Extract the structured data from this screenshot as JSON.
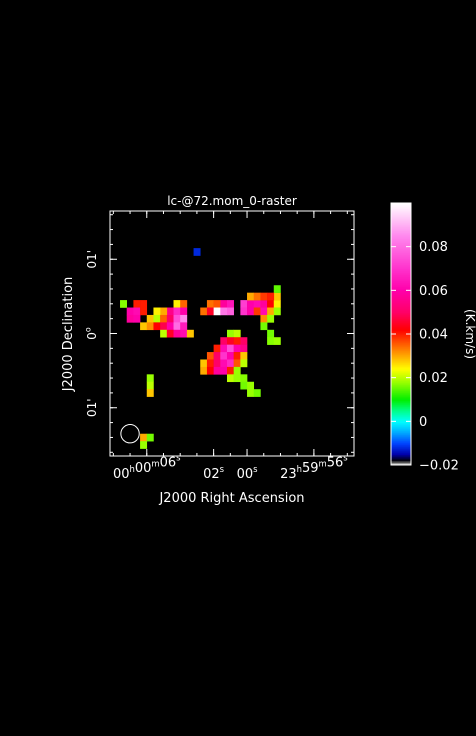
{
  "chart_data": {
    "type": "heatmap",
    "title": "lc-@72.mom_0-raster",
    "xlabel": "J2000 Right Ascension",
    "ylabel": "J2000 Declination",
    "x_ticks": [
      {
        "value": 6,
        "label_html": "00<sup>h</sup>00<sup>m</sup>06<sup>s</sup>",
        "parts": [
          [
            "00",
            ""
          ],
          [
            "h",
            "sup"
          ],
          [
            "00",
            ""
          ],
          [
            "m",
            "sup"
          ],
          [
            "06",
            ""
          ],
          [
            "s",
            "sup"
          ]
        ]
      },
      {
        "value": 2,
        "parts": [
          [
            "02",
            ""
          ],
          [
            "s",
            "sup"
          ]
        ]
      },
      {
        "value": 0,
        "parts": [
          [
            "00",
            ""
          ],
          [
            "s",
            "sup"
          ]
        ]
      },
      {
        "value": -4,
        "parts": [
          [
            "23",
            ""
          ],
          [
            "h",
            "sup"
          ],
          [
            "59",
            ""
          ],
          [
            "m",
            "sup"
          ],
          [
            "56",
            ""
          ],
          [
            "s",
            "sup"
          ]
        ]
      }
    ],
    "y_ticks": [
      {
        "value": 1,
        "parts": [
          [
            "01",
            ""
          ],
          [
            "'",
            ""
          ]
        ]
      },
      {
        "value": 0,
        "parts": [
          [
            "0",
            ""
          ],
          [
            "o",
            "sup"
          ]
        ]
      },
      {
        "value": -1,
        "parts": [
          [
            "01",
            ""
          ],
          [
            "'",
            ""
          ]
        ]
      }
    ],
    "xlim": [
      8.2,
      -6.4
    ],
    "ylim": [
      -1.65,
      1.65
    ],
    "colorbar": {
      "label": "(K.km/s)",
      "range": [
        -0.02,
        0.1
      ],
      "ticks": [
        {
          "value": 0.08,
          "label": "0.08"
        },
        {
          "value": 0.06,
          "label": "0.06"
        },
        {
          "value": 0.04,
          "label": "0.04"
        },
        {
          "value": 0.02,
          "label": "0.02"
        },
        {
          "value": 0,
          "label": "0"
        },
        {
          "value": -0.02,
          "label": "−0.02"
        }
      ],
      "stops": [
        [
          -0.02,
          "#ffffff"
        ],
        [
          -0.018,
          "#000000"
        ],
        [
          -0.015,
          "#0000aa"
        ],
        [
          -0.01,
          "#0044ff"
        ],
        [
          -0.005,
          "#00aaff"
        ],
        [
          0.0,
          "#00ffff"
        ],
        [
          0.005,
          "#00ff88"
        ],
        [
          0.01,
          "#00ee00"
        ],
        [
          0.018,
          "#99ff00"
        ],
        [
          0.024,
          "#ffff00"
        ],
        [
          0.03,
          "#ffaa00"
        ],
        [
          0.036,
          "#ff5500"
        ],
        [
          0.042,
          "#ff0000"
        ],
        [
          0.05,
          "#ff0066"
        ],
        [
          0.06,
          "#ff00aa"
        ],
        [
          0.07,
          "#ff33cc"
        ],
        [
          0.085,
          "#ff88ee"
        ],
        [
          0.1,
          "#ffffff"
        ]
      ]
    },
    "pixel_grid": {
      "x0": 7.4,
      "dx": -0.4,
      "y0": 1.1,
      "dy": -0.1
    },
    "cells": [
      [
        11,
        0,
        -0.012
      ],
      [
        0,
        7,
        0.017
      ],
      [
        2,
        7,
        0.04
      ],
      [
        3,
        7,
        0.04
      ],
      [
        1,
        8,
        0.06
      ],
      [
        2,
        8,
        0.062
      ],
      [
        3,
        8,
        0.04
      ],
      [
        1,
        9,
        0.058
      ],
      [
        2,
        9,
        0.06
      ],
      [
        13,
        7,
        0.034
      ],
      [
        14,
        7,
        0.036
      ],
      [
        15,
        7,
        0.058
      ],
      [
        16,
        7,
        0.064
      ],
      [
        18,
        7,
        0.072
      ],
      [
        19,
        7,
        0.06
      ],
      [
        20,
        7,
        0.062
      ],
      [
        21,
        7,
        0.058
      ],
      [
        22,
        7,
        0.042
      ],
      [
        23,
        7,
        0.025
      ],
      [
        12,
        8,
        0.034
      ],
      [
        13,
        8,
        0.045
      ],
      [
        14,
        8,
        0.1
      ],
      [
        15,
        8,
        0.082
      ],
      [
        16,
        8,
        0.078
      ],
      [
        18,
        8,
        0.07
      ],
      [
        19,
        8,
        0.06
      ],
      [
        20,
        8,
        0.038
      ],
      [
        21,
        8,
        0.062
      ],
      [
        22,
        8,
        0.03
      ],
      [
        23,
        8,
        0.018
      ],
      [
        23,
        6,
        0.028
      ],
      [
        23,
        5,
        0.015
      ],
      [
        19,
        6,
        0.03
      ],
      [
        20,
        6,
        0.034
      ],
      [
        21,
        6,
        0.038
      ],
      [
        22,
        6,
        0.04
      ],
      [
        21,
        9,
        0.032
      ],
      [
        22,
        9,
        0.018
      ],
      [
        21,
        10,
        0.016
      ],
      [
        8,
        7,
        0.025
      ],
      [
        9,
        7,
        0.035
      ],
      [
        7,
        8,
        0.055
      ],
      [
        8,
        8,
        0.068
      ],
      [
        9,
        8,
        0.06
      ],
      [
        6,
        8,
        0.03
      ],
      [
        5,
        8,
        0.025
      ],
      [
        4,
        9,
        0.028
      ],
      [
        5,
        9,
        0.02
      ],
      [
        6,
        9,
        0.035
      ],
      [
        7,
        9,
        0.05
      ],
      [
        8,
        9,
        0.075
      ],
      [
        9,
        9,
        0.085
      ],
      [
        3,
        10,
        0.028
      ],
      [
        4,
        10,
        0.032
      ],
      [
        5,
        10,
        0.042
      ],
      [
        6,
        10,
        0.048
      ],
      [
        7,
        10,
        0.06
      ],
      [
        8,
        10,
        0.08
      ],
      [
        9,
        10,
        0.065
      ],
      [
        6,
        11,
        0.02
      ],
      [
        7,
        11,
        0.045
      ],
      [
        8,
        11,
        0.058
      ],
      [
        9,
        11,
        0.062
      ],
      [
        10,
        11,
        0.028
      ],
      [
        16,
        11,
        0.018
      ],
      [
        17,
        11,
        0.02
      ],
      [
        22,
        11,
        0.016
      ],
      [
        22,
        12,
        0.017
      ],
      [
        23,
        12,
        0.018
      ],
      [
        15,
        12,
        0.05
      ],
      [
        16,
        12,
        0.045
      ],
      [
        17,
        12,
        0.04
      ],
      [
        18,
        12,
        0.05
      ],
      [
        14,
        13,
        0.04
      ],
      [
        15,
        13,
        0.062
      ],
      [
        16,
        13,
        0.075
      ],
      [
        17,
        13,
        0.06
      ],
      [
        18,
        13,
        0.055
      ],
      [
        13,
        14,
        0.036
      ],
      [
        14,
        14,
        0.05
      ],
      [
        15,
        14,
        0.07
      ],
      [
        16,
        14,
        0.06
      ],
      [
        17,
        14,
        0.04
      ],
      [
        18,
        14,
        0.028
      ],
      [
        12,
        15,
        0.028
      ],
      [
        13,
        15,
        0.04
      ],
      [
        14,
        15,
        0.05
      ],
      [
        15,
        15,
        0.062
      ],
      [
        16,
        15,
        0.068
      ],
      [
        17,
        15,
        0.036
      ],
      [
        18,
        15,
        0.02
      ],
      [
        12,
        16,
        0.03
      ],
      [
        13,
        16,
        0.042
      ],
      [
        14,
        16,
        0.058
      ],
      [
        15,
        16,
        0.06
      ],
      [
        16,
        16,
        0.04
      ],
      [
        17,
        16,
        0.018
      ],
      [
        16,
        17,
        0.02
      ],
      [
        17,
        17,
        0.018
      ],
      [
        18,
        17,
        0.017
      ],
      [
        18,
        18,
        0.016
      ],
      [
        19,
        18,
        0.018
      ],
      [
        19,
        19,
        0.018
      ],
      [
        20,
        19,
        0.016
      ],
      [
        4,
        17,
        0.018
      ],
      [
        4,
        18,
        0.02
      ],
      [
        4,
        19,
        0.028
      ],
      [
        3,
        25,
        0.03
      ],
      [
        3,
        26,
        0.018
      ],
      [
        4,
        25,
        0.016
      ]
    ],
    "beam": {
      "center": [
        7.0,
        -1.35
      ],
      "radius_ra_seconds": 0.55
    }
  }
}
